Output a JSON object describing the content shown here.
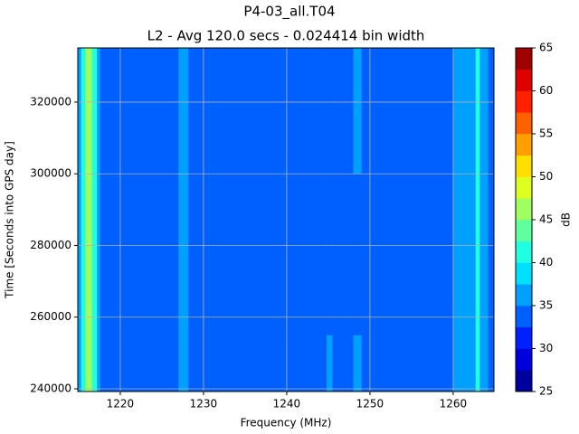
{
  "chart_data": {
    "type": "heatmap",
    "title": "P4-03_all.T04",
    "subtitle": "L2 - Avg 120.0 secs - 0.024414 bin width",
    "xlabel": "Frequency (MHz)",
    "ylabel": "Time [Seconds into GPS day]",
    "colorbar_label": "dB",
    "xlim": [
      1214.9,
      1264.9
    ],
    "xticks": [
      1220,
      1230,
      1240,
      1250,
      1260
    ],
    "ylim": [
      239240,
      335130
    ],
    "yticks": [
      240000,
      260000,
      280000,
      300000,
      320000
    ],
    "grid": true,
    "x": [
      1214.9,
      1215.3,
      1215.8,
      1216.6,
      1217.2,
      1217.6,
      1227.0,
      1228.2,
      1244.8,
      1245.5,
      1248.0,
      1249.0,
      1260.0,
      1262.7,
      1263.2,
      1264.2,
      1264.9
    ],
    "y": [
      239240,
      255000,
      300000,
      335130
    ],
    "z": [
      [
        36,
        41,
        47,
        41,
        36,
        34,
        36,
        34,
        36,
        34,
        36,
        34,
        36,
        42,
        36,
        34
      ],
      [
        36,
        41,
        47,
        41,
        36,
        34,
        36,
        34,
        34,
        34,
        34,
        34,
        36,
        42,
        36,
        34
      ],
      [
        36,
        41,
        47,
        41,
        36,
        34,
        36,
        34,
        34,
        34,
        36,
        34,
        36,
        42,
        36,
        34
      ]
    ],
    "levels": [
      25,
      27.5,
      30,
      32.5,
      35,
      37.5,
      40,
      42.5,
      45,
      47.5,
      50,
      52.5,
      55,
      57.5,
      60,
      62.5,
      65
    ],
    "colors": [
      "#00009f",
      "#0000df",
      "#0020ff",
      "#0060ff",
      "#00a0ff",
      "#00e0ff",
      "#20ffdf",
      "#60ff9f",
      "#9fff60",
      "#dfff20",
      "#ffdf00",
      "#ff9f00",
      "#ff6000",
      "#ff2000",
      "#df0000",
      "#9f0000"
    ],
    "cticks": [
      25,
      30,
      35,
      40,
      45,
      50,
      55,
      60,
      65
    ]
  }
}
